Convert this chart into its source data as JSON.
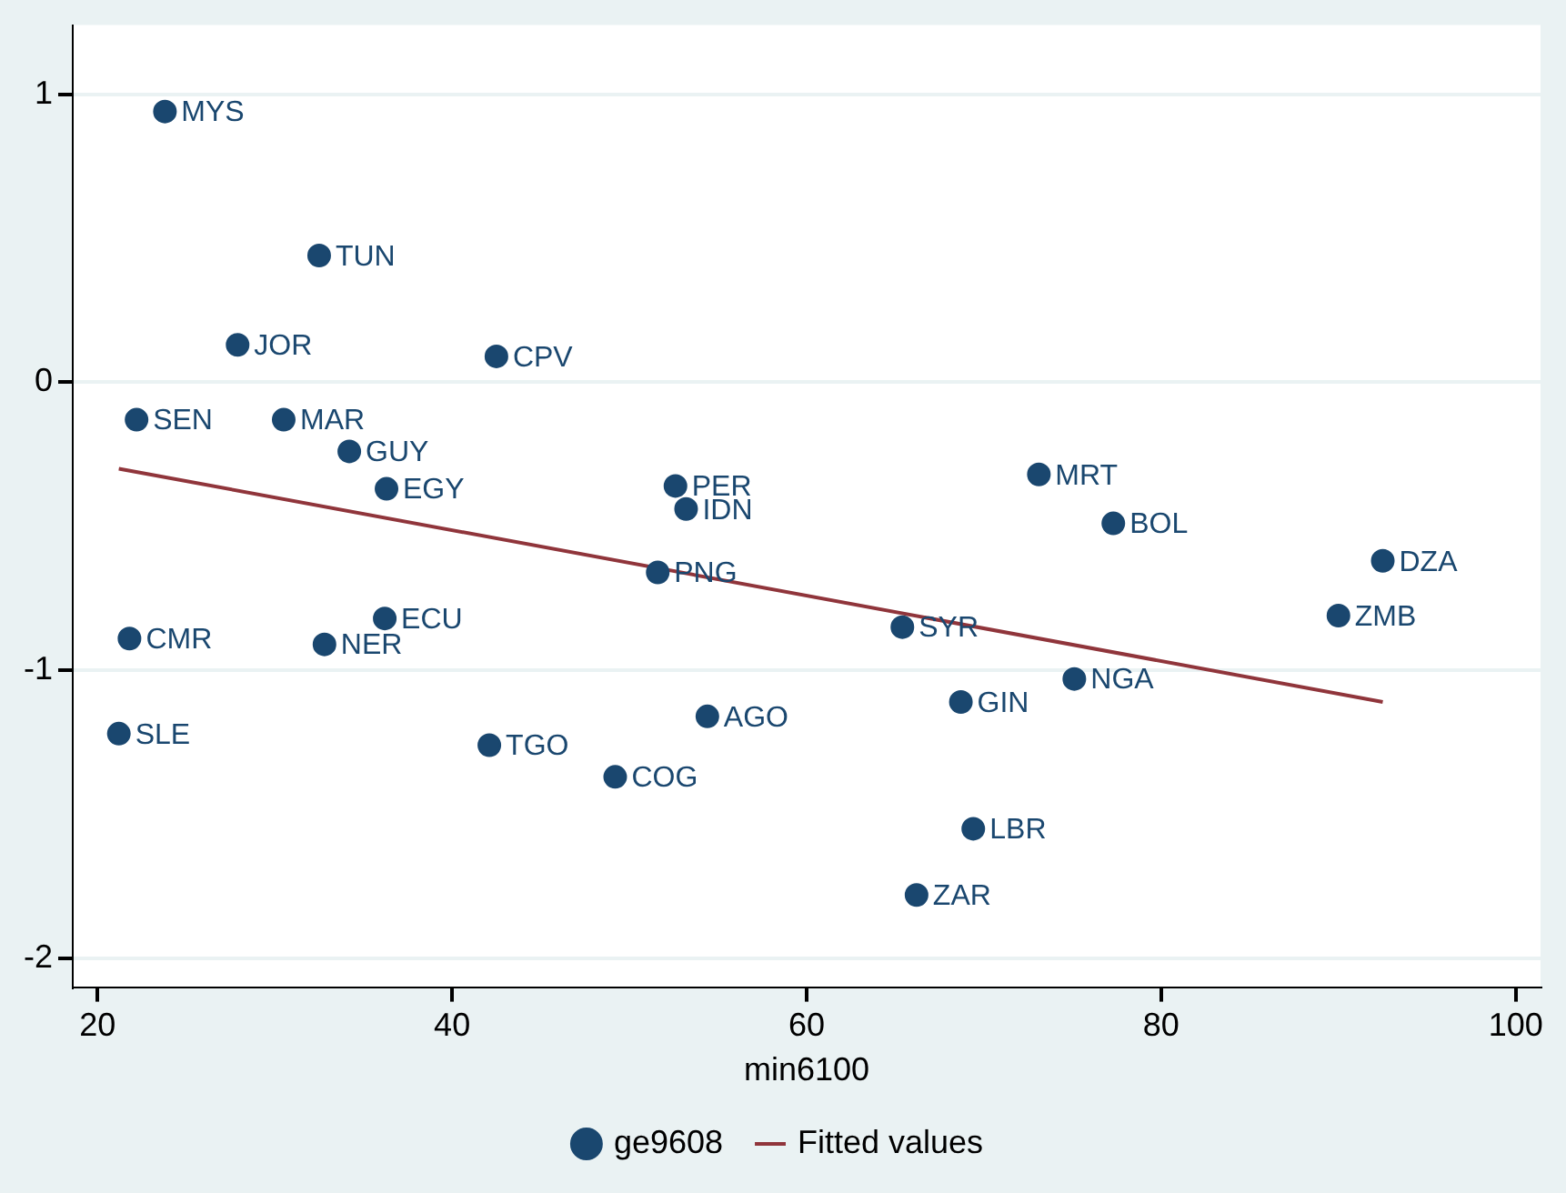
{
  "chart_data": {
    "type": "scatter",
    "xlabel": "min6100",
    "xlim": [
      18.6,
      101.4
    ],
    "xticks": [
      20,
      40,
      60,
      80,
      100
    ],
    "ylim": [
      -2.1,
      1.24
    ],
    "yticks": [
      -2,
      -1,
      0,
      1
    ],
    "grid": "y",
    "legend": "bottom",
    "marker": "circle",
    "series": [
      {
        "name": "ge9608",
        "color": "#1a476f",
        "x": [
          23.8,
          32.5,
          27.9,
          42.5,
          22.2,
          30.5,
          34.2,
          36.3,
          52.6,
          53.2,
          51.6,
          73.1,
          77.3,
          92.5,
          90.0,
          65.4,
          75.1,
          68.7,
          69.4,
          66.2,
          21.8,
          32.8,
          36.2,
          21.2,
          42.1,
          49.2,
          54.4
        ],
        "values": [
          0.94,
          0.44,
          0.13,
          0.09,
          -0.13,
          -0.13,
          -0.24,
          -0.37,
          -0.36,
          -0.44,
          -0.66,
          -0.32,
          -0.49,
          -0.62,
          -0.81,
          -0.85,
          -1.03,
          -1.11,
          -1.55,
          -1.78,
          -0.89,
          -0.91,
          -0.82,
          -1.22,
          -1.26,
          -1.37,
          -1.16
        ],
        "value_labels": [
          "MYS",
          "TUN",
          "JOR",
          "CPV",
          "SEN",
          "MAR",
          "GUY",
          "EGY",
          "PER",
          "IDN",
          "PNG",
          "MRT",
          "BOL",
          "DZA",
          "ZMB",
          "SYR",
          "NGA",
          "GIN",
          "LBR",
          "ZAR",
          "CMR",
          "NER",
          "ECU",
          "SLE",
          "TGO",
          "COG",
          "AGO"
        ]
      },
      {
        "name": "Fitted values",
        "type": "line",
        "marker": "none",
        "color": "#90353b",
        "x": [
          21.2,
          92.5
        ],
        "values": [
          -0.3,
          -1.11
        ]
      }
    ]
  }
}
